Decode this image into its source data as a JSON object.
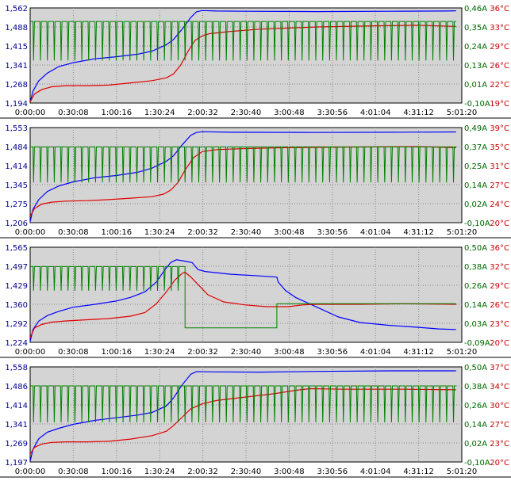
{
  "chart_data": [
    {
      "type": "line",
      "x_tick_labels": [
        "0:00:00",
        "0:30:08",
        "1:00:16",
        "1:30:24",
        "2:00:32",
        "2:30:40",
        "3:00:48",
        "3:30:56",
        "4:01:04",
        "4:31:12",
        "5:01:20"
      ],
      "xlim": [
        0,
        301
      ],
      "y_left": {
        "ticks": [
          "1,194",
          "1,268",
          "1,341",
          "1,415",
          "1,488",
          "1,562"
        ],
        "range": [
          1.194,
          1.562
        ]
      },
      "y_current": {
        "ticks": [
          "-0,10A",
          "0,01A",
          "0,13A",
          "0,24A",
          "0,35A",
          "0,46A"
        ],
        "range": [
          -0.1,
          0.46
        ]
      },
      "y_temp": {
        "ticks": [
          "19°C",
          "22°C",
          "26°C",
          "29°C",
          "33°C",
          "36°C"
        ],
        "range": [
          19,
          36
        ]
      },
      "grid": true,
      "series": [
        {
          "color": "#0000ff",
          "axis": "left",
          "points": [
            [
              0,
              1.198
            ],
            [
              2,
              1.24
            ],
            [
              6,
              1.28
            ],
            [
              12,
              1.31
            ],
            [
              20,
              1.335
            ],
            [
              30,
              1.35
            ],
            [
              45,
              1.365
            ],
            [
              60,
              1.373
            ],
            [
              75,
              1.383
            ],
            [
              85,
              1.395
            ],
            [
              95,
              1.42
            ],
            [
              100,
              1.44
            ],
            [
              106,
              1.48
            ],
            [
              112,
              1.525
            ],
            [
              116,
              1.547
            ],
            [
              120,
              1.552
            ],
            [
              130,
              1.55
            ],
            [
              150,
              1.549
            ],
            [
              200,
              1.548
            ],
            [
              250,
              1.549
            ],
            [
              290,
              1.55
            ],
            [
              297,
              1.551
            ]
          ]
        },
        {
          "color": "#e00000",
          "axis": "temp",
          "points": [
            [
              0,
              19.2
            ],
            [
              3,
              20.6
            ],
            [
              8,
              21.4
            ],
            [
              15,
              21.9
            ],
            [
              25,
              22.1
            ],
            [
              40,
              22.1
            ],
            [
              55,
              22.2
            ],
            [
              70,
              22.6
            ],
            [
              85,
              23.0
            ],
            [
              95,
              23.5
            ],
            [
              100,
              24.2
            ],
            [
              105,
              25.8
            ],
            [
              110,
              28.2
            ],
            [
              115,
              30.2
            ],
            [
              120,
              31.0
            ],
            [
              125,
              31.4
            ],
            [
              140,
              31.8
            ],
            [
              160,
              32.2
            ],
            [
              180,
              32.4
            ],
            [
              200,
              32.6
            ],
            [
              240,
              32.8
            ],
            [
              270,
              32.9
            ],
            [
              297,
              32.7
            ]
          ]
        },
        {
          "color": "#008000",
          "axis": "current",
          "base": 0.38,
          "spike_to": 0.15,
          "spike_start": 2,
          "spike_step": 4.8,
          "end": 297
        }
      ]
    },
    {
      "type": "line",
      "x_tick_labels": [
        "0:00:00",
        "0:30:08",
        "1:00:16",
        "1:30:24",
        "2:00:32",
        "2:30:40",
        "3:00:48",
        "3:30:56",
        "4:01:04",
        "4:31:12",
        "5:01:20"
      ],
      "xlim": [
        0,
        301
      ],
      "y_left": {
        "ticks": [
          "1,206",
          "1,275",
          "1,345",
          "1,414",
          "1,484",
          "1,553"
        ],
        "range": [
          1.206,
          1.553
        ]
      },
      "y_current": {
        "ticks": [
          "-0,10A",
          "0,02A",
          "0,14A",
          "0,25A",
          "0,37A",
          "0,49A"
        ],
        "range": [
          -0.1,
          0.49
        ]
      },
      "y_temp": {
        "ticks": [
          "20°C",
          "24°C",
          "27°C",
          "31°C",
          "35°C",
          "39°C"
        ],
        "range": [
          20,
          39
        ]
      },
      "grid": true,
      "series": [
        {
          "color": "#0000ff",
          "axis": "left",
          "points": [
            [
              0,
              1.21
            ],
            [
              2,
              1.255
            ],
            [
              6,
              1.29
            ],
            [
              12,
              1.32
            ],
            [
              20,
              1.34
            ],
            [
              30,
              1.355
            ],
            [
              45,
              1.37
            ],
            [
              60,
              1.378
            ],
            [
              75,
              1.39
            ],
            [
              85,
              1.405
            ],
            [
              95,
              1.43
            ],
            [
              100,
              1.45
            ],
            [
              106,
              1.49
            ],
            [
              112,
              1.525
            ],
            [
              116,
              1.535
            ],
            [
              120,
              1.538
            ],
            [
              140,
              1.536
            ],
            [
              200,
              1.535
            ],
            [
              250,
              1.536
            ],
            [
              297,
              1.537
            ]
          ]
        },
        {
          "color": "#e00000",
          "axis": "temp",
          "points": [
            [
              0,
              21.3
            ],
            [
              3,
              22.8
            ],
            [
              8,
              23.7
            ],
            [
              15,
              24.1
            ],
            [
              25,
              24.3
            ],
            [
              40,
              24.4
            ],
            [
              55,
              24.6
            ],
            [
              70,
              24.9
            ],
            [
              85,
              25.2
            ],
            [
              93,
              25.7
            ],
            [
              98,
              26.5
            ],
            [
              103,
              28.0
            ],
            [
              108,
              30.5
            ],
            [
              114,
              33.0
            ],
            [
              120,
              34.2
            ],
            [
              130,
              34.6
            ],
            [
              150,
              34.8
            ],
            [
              180,
              35.0
            ],
            [
              220,
              35.1
            ],
            [
              270,
              35.2
            ],
            [
              297,
              35.0
            ]
          ]
        },
        {
          "color": "#008000",
          "axis": "current",
          "base": 0.37,
          "spike_to": 0.15,
          "spike_start": 2,
          "spike_step": 4.8,
          "end": 297
        }
      ]
    },
    {
      "type": "line",
      "x_tick_labels": [
        "0:00:00",
        "0:30:08",
        "1:00:16",
        "1:30:24",
        "2:00:32",
        "2:30:40",
        "3:00:48",
        "3:30:56",
        "4:01:04",
        "4:31:12",
        "5:01:20"
      ],
      "xlim": [
        0,
        301
      ],
      "y_left": {
        "ticks": [
          "1,224",
          "1,292",
          "1,360",
          "1,429",
          "1,497",
          "1,565"
        ],
        "range": [
          1.224,
          1.565
        ]
      },
      "y_current": {
        "ticks": [
          "-0,09A",
          "0,03A",
          "0,14A",
          "0,26A",
          "0,38A",
          "0,50A"
        ],
        "range": [
          -0.09,
          0.5
        ]
      },
      "y_temp": {
        "ticks": [
          "20°C",
          "23°C",
          "26°C",
          "29°C",
          "32°C",
          "36°C"
        ],
        "range": [
          20,
          36
        ]
      },
      "grid": true,
      "series": [
        {
          "color": "#0000ff",
          "axis": "left",
          "points": [
            [
              0,
              1.228
            ],
            [
              2,
              1.27
            ],
            [
              6,
              1.3
            ],
            [
              12,
              1.32
            ],
            [
              20,
              1.335
            ],
            [
              30,
              1.35
            ],
            [
              45,
              1.36
            ],
            [
              60,
              1.372
            ],
            [
              70,
              1.385
            ],
            [
              80,
              1.405
            ],
            [
              88,
              1.44
            ],
            [
              94,
              1.485
            ],
            [
              98,
              1.51
            ],
            [
              102,
              1.52
            ],
            [
              108,
              1.515
            ],
            [
              113,
              1.51
            ],
            [
              117,
              1.485
            ],
            [
              122,
              1.478
            ],
            [
              140,
              1.468
            ],
            [
              160,
              1.462
            ],
            [
              172,
              1.458
            ],
            [
              173,
              1.44
            ],
            [
              178,
              1.41
            ],
            [
              185,
              1.385
            ],
            [
              200,
              1.35
            ],
            [
              215,
              1.315
            ],
            [
              230,
              1.295
            ],
            [
              250,
              1.285
            ],
            [
              270,
              1.278
            ],
            [
              285,
              1.272
            ],
            [
              297,
              1.27
            ]
          ]
        },
        {
          "color": "#e00000",
          "axis": "temp",
          "points": [
            [
              0,
              20.8
            ],
            [
              3,
              22.4
            ],
            [
              8,
              23.0
            ],
            [
              15,
              23.4
            ],
            [
              25,
              23.6
            ],
            [
              40,
              23.8
            ],
            [
              55,
              24.0
            ],
            [
              70,
              24.4
            ],
            [
              80,
              25.0
            ],
            [
              88,
              26.5
            ],
            [
              95,
              28.5
            ],
            [
              101,
              30.5
            ],
            [
              106,
              31.6
            ],
            [
              108,
              31.8
            ],
            [
              112,
              31.0
            ],
            [
              118,
              29.5
            ],
            [
              124,
              28.0
            ],
            [
              135,
              26.8
            ],
            [
              150,
              26.3
            ],
            [
              165,
              26.0
            ],
            [
              180,
              26.0
            ],
            [
              190,
              26.3
            ],
            [
              200,
              26.4
            ],
            [
              230,
              26.4
            ],
            [
              260,
              26.5
            ],
            [
              297,
              26.4
            ]
          ]
        },
        {
          "color": "#008000",
          "axis": "current",
          "segments": [
            {
              "from": 0,
              "to": 108,
              "base": 0.38,
              "spike_to": 0.23,
              "spike_start": 2,
              "spike_step": 4.8
            },
            {
              "from": 108,
              "to": 172,
              "base": 0.0
            },
            {
              "from": 172,
              "to": 297,
              "base": 0.15
            }
          ]
        }
      ]
    },
    {
      "type": "line",
      "x_tick_labels": [
        "0:00:00",
        "0:30:08",
        "1:00:16",
        "1:30:24",
        "2:00:32",
        "2:30:40",
        "3:00:48",
        "3:30:56",
        "4:01:04",
        "4:31:12",
        "5:01:20"
      ],
      "xlim": [
        0,
        301
      ],
      "y_left": {
        "ticks": [
          "1,197",
          "1,269",
          "1,341",
          "1,414",
          "1,486",
          "1,558"
        ],
        "range": [
          1.197,
          1.558
        ]
      },
      "y_current": {
        "ticks": [
          "-0,10A",
          "0,02A",
          "0,14A",
          "0,26A",
          "0,38A",
          "0,50A"
        ],
        "range": [
          -0.1,
          0.5
        ]
      },
      "y_temp": {
        "ticks": [
          "20°C",
          "23°C",
          "27°C",
          "30°C",
          "34°C",
          "37°C"
        ],
        "range": [
          20,
          37
        ]
      },
      "grid": true,
      "series": [
        {
          "color": "#0000ff",
          "axis": "left",
          "points": [
            [
              0,
              1.2
            ],
            [
              2,
              1.245
            ],
            [
              6,
              1.285
            ],
            [
              12,
              1.31
            ],
            [
              20,
              1.325
            ],
            [
              30,
              1.34
            ],
            [
              45,
              1.355
            ],
            [
              60,
              1.365
            ],
            [
              75,
              1.375
            ],
            [
              85,
              1.385
            ],
            [
              95,
              1.41
            ],
            [
              100,
              1.44
            ],
            [
              106,
              1.49
            ],
            [
              112,
              1.53
            ],
            [
              116,
              1.54
            ],
            [
              130,
              1.539
            ],
            [
              160,
              1.538
            ],
            [
              200,
              1.541
            ],
            [
              250,
              1.543
            ],
            [
              297,
              1.543
            ]
          ]
        },
        {
          "color": "#e00000",
          "axis": "temp",
          "points": [
            [
              0,
              21.4
            ],
            [
              3,
              22.6
            ],
            [
              8,
              23.2
            ],
            [
              15,
              23.5
            ],
            [
              25,
              23.6
            ],
            [
              40,
              23.6
            ],
            [
              55,
              23.7
            ],
            [
              70,
              24.1
            ],
            [
              85,
              24.7
            ],
            [
              95,
              25.5
            ],
            [
              100,
              26.5
            ],
            [
              106,
              28.0
            ],
            [
              112,
              29.5
            ],
            [
              120,
              30.4
            ],
            [
              130,
              31.0
            ],
            [
              150,
              31.6
            ],
            [
              170,
              32.2
            ],
            [
              185,
              32.8
            ],
            [
              195,
              33.1
            ],
            [
              220,
              33.0
            ],
            [
              260,
              33.0
            ],
            [
              297,
              32.9
            ]
          ]
        },
        {
          "color": "#008000",
          "axis": "current",
          "base": 0.38,
          "spike_to": 0.15,
          "spike_start": 2,
          "spike_step": 4.8,
          "end": 297
        }
      ]
    }
  ]
}
